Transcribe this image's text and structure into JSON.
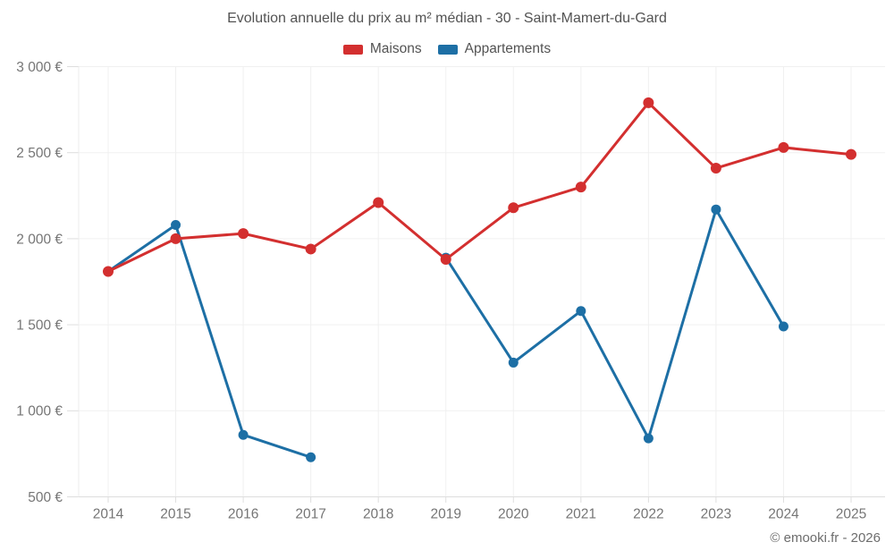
{
  "watermark": "© emooki.fr - 2026",
  "chart_data": {
    "type": "line",
    "title": "Evolution annuelle du prix au m² médian - 30 - Saint-Mamert-du-Gard",
    "categories": [
      "2014",
      "2015",
      "2016",
      "2017",
      "2018",
      "2019",
      "2020",
      "2021",
      "2022",
      "2023",
      "2024",
      "2025"
    ],
    "series": [
      {
        "name": "Maisons",
        "color": "#d32f2f",
        "values": [
          1810,
          2000,
          2030,
          1940,
          2210,
          1880,
          2180,
          2300,
          2790,
          2410,
          2530,
          2490
        ]
      },
      {
        "name": "Appartements",
        "color": "#1d6fa5",
        "values": [
          1810,
          2080,
          860,
          730,
          null,
          1890,
          1280,
          1580,
          840,
          2170,
          1490,
          null
        ]
      }
    ],
    "xlabel": "",
    "ylabel": "",
    "ylim": [
      500,
      3000
    ],
    "y_ticks": [
      500,
      1000,
      1500,
      2000,
      2500,
      3000
    ],
    "y_tick_labels": [
      "500 €",
      "1 000 €",
      "1 500 €",
      "2 000 €",
      "2 500 €",
      "3 000 €"
    ],
    "grid": true,
    "legend_position": "top",
    "unit": "€/m²"
  }
}
